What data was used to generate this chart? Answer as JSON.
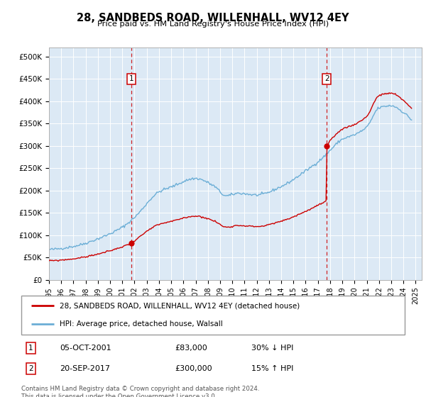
{
  "title": "28, SANDBEDS ROAD, WILLENHALL, WV12 4EY",
  "subtitle": "Price paid vs. HM Land Registry's House Price Index (HPI)",
  "plot_bg_color": "#dce9f5",
  "hpi_color": "#6baed6",
  "price_color": "#cc0000",
  "dashed_line_color": "#cc0000",
  "transaction1": {
    "date_num": 2001.75,
    "price": 83000,
    "label": "1",
    "date_str": "05-OCT-2001",
    "price_str": "£83,000",
    "note": "30% ↓ HPI"
  },
  "transaction2": {
    "date_num": 2017.72,
    "price": 300000,
    "label": "2",
    "date_str": "20-SEP-2017",
    "price_str": "£300,000",
    "note": "15% ↑ HPI"
  },
  "xlim": [
    1995,
    2025.5
  ],
  "ylim": [
    0,
    520000
  ],
  "yticks": [
    0,
    50000,
    100000,
    150000,
    200000,
    250000,
    300000,
    350000,
    400000,
    450000,
    500000
  ],
  "ytick_labels": [
    "£0",
    "£50K",
    "£100K",
    "£150K",
    "£200K",
    "£250K",
    "£300K",
    "£350K",
    "£400K",
    "£450K",
    "£500K"
  ],
  "xticks": [
    1995,
    1996,
    1997,
    1998,
    1999,
    2000,
    2001,
    2002,
    2003,
    2004,
    2005,
    2006,
    2007,
    2008,
    2009,
    2010,
    2011,
    2012,
    2013,
    2014,
    2015,
    2016,
    2017,
    2018,
    2019,
    2020,
    2021,
    2022,
    2023,
    2024,
    2025
  ],
  "legend_label_red": "28, SANDBEDS ROAD, WILLENHALL, WV12 4EY (detached house)",
  "legend_label_blue": "HPI: Average price, detached house, Walsall",
  "footer": "Contains HM Land Registry data © Crown copyright and database right 2024.\nThis data is licensed under the Open Government Licence v3.0."
}
